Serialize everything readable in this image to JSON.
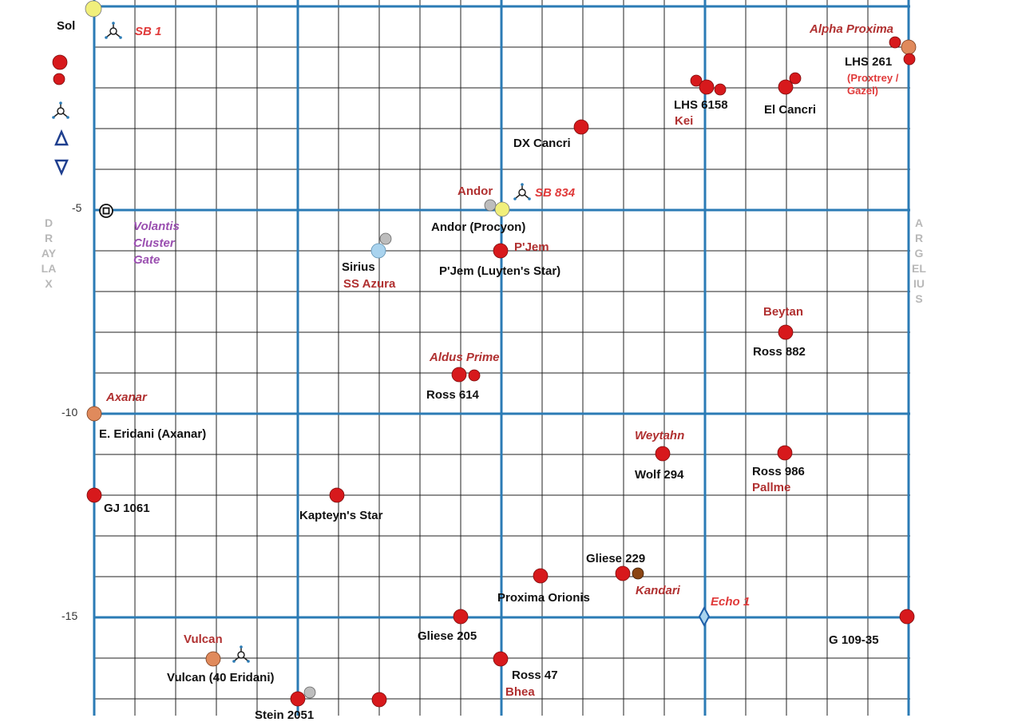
{
  "map": {
    "tick_labels": [
      "-5",
      "-10",
      "-15"
    ],
    "side_labels": {
      "left": "DRAYLAX",
      "right": "ARGELIUS"
    },
    "colors": {
      "major_grid": "#2b7bb5",
      "minor_grid": "#222222",
      "red_star": "#d7191c",
      "orange_star": "#e08a5c",
      "yellow_star": "#f1ef7b",
      "grey_star": "#bdbdbd",
      "blue_star": "#a9d3ee",
      "brown_star": "#8b4513"
    }
  },
  "sol_label": "Sol",
  "legend": [
    {
      "icon": "large-red-star-icon"
    },
    {
      "icon": "small-red-star-icon"
    },
    {
      "icon": "starbase-icon"
    },
    {
      "icon": "triangle-up-icon"
    },
    {
      "icon": "triangle-down-icon"
    }
  ],
  "labels": {
    "sb1": "SB 1",
    "alpha_proxima": "Alpha Proxima",
    "lhs261": "LHS 261",
    "proxtrey_gazel": "(Proxtrey / Gazel)",
    "lhs6158": "LHS 6158",
    "kei": "Kei",
    "el_cancri": "El Cancri",
    "dx_cancri": "DX Cancri",
    "andor_planet": "Andor",
    "sb834": "SB 834",
    "andor_procyon": "Andor (Procyon)",
    "pjem_planet": "P'Jem",
    "pjem_luyten": "P'Jem (Luyten's Star)",
    "volantis": "Volantis Cluster Gate",
    "sirius": "Sirius",
    "ss_azura": "SS Azura",
    "beytan": "Beytan",
    "ross882": "Ross 882",
    "aldus_prime": "Aldus Prime",
    "ross614": "Ross 614",
    "axanar": "Axanar",
    "eps_eridani": "E. Eridani (Axanar)",
    "weytahn": "Weytahn",
    "wolf294": "Wolf 294",
    "ross986": "Ross 986",
    "pallme": "Pallme",
    "gj1061": "GJ 1061",
    "kapteyn": "Kapteyn's Star",
    "gliese229": "Gliese 229",
    "kandari": "Kandari",
    "proxima_orionis": "Proxima Orionis",
    "echo1": "Echo 1",
    "gliese205": "Gliese 205",
    "g109_35": "G 109-35",
    "vulcan_planet": "Vulcan",
    "vulcan_40eri": "Vulcan (40 Eridani)",
    "ross47": "Ross 47",
    "bhea": "Bhea",
    "stein2051": "Stein 2051"
  }
}
